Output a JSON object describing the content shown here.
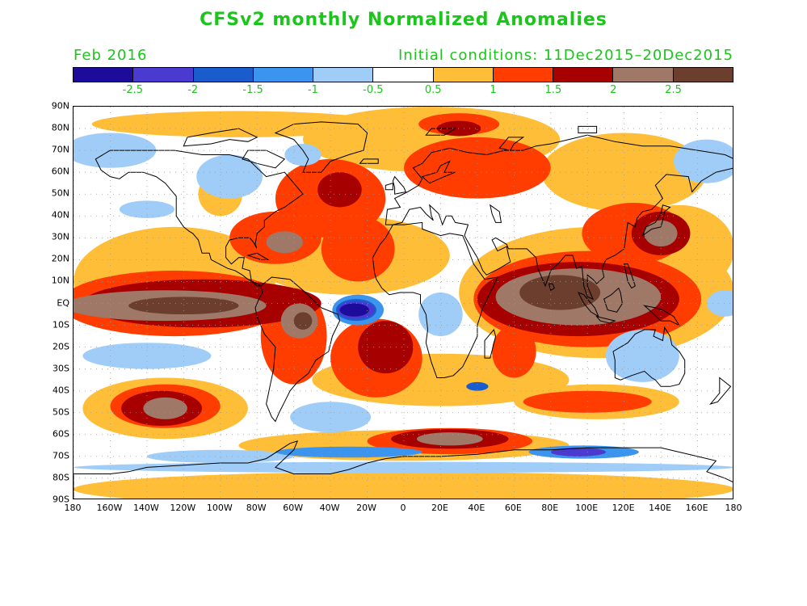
{
  "title": "CFSv2 monthly Normalized Anomalies",
  "subtitle_left": "Feb 2016",
  "subtitle_right": "Initial conditions: 11Dec2015–20Dec2015",
  "colors": {
    "text": "#19c619",
    "coast": "#000000",
    "grid": "#9a9a9a"
  },
  "colorbar": {
    "colors": [
      "#1d0c9c",
      "#4b3ad0",
      "#1a5ccc",
      "#3b95ee",
      "#a0cdf8",
      "#ffffff",
      "#ffbe38",
      "#ff3d00",
      "#a60000",
      "#a07868",
      "#6b3e2e"
    ],
    "labels": [
      "-2.5",
      "-2",
      "-1.5",
      "-1",
      "-0.5",
      "0.5",
      "1",
      "1.5",
      "2",
      "2.5"
    ]
  },
  "lat_labels": [
    "90N",
    "80N",
    "70N",
    "60N",
    "50N",
    "40N",
    "30N",
    "20N",
    "10N",
    "EQ",
    "10S",
    "20S",
    "30S",
    "40S",
    "50S",
    "60S",
    "70S",
    "80S",
    "90S"
  ],
  "lon_labels": [
    "180",
    "160W",
    "140W",
    "120W",
    "100W",
    "80W",
    "60W",
    "40W",
    "20W",
    "0",
    "20E",
    "40E",
    "60E",
    "80E",
    "100E",
    "120E",
    "140E",
    "160E",
    "180"
  ],
  "anomaly_features": [
    {
      "feature": "tropical-pacific",
      "lon_range": [
        -180,
        -80
      ],
      "lat_range": [
        -12,
        10
      ],
      "value": 2.7
    },
    {
      "feature": "indian-ocean-maritime",
      "lon_range": [
        45,
        160
      ],
      "lat_range": [
        -15,
        20
      ],
      "value": 2.7
    },
    {
      "feature": "equatorial-atlantic",
      "lon_range": [
        -35,
        -15
      ],
      "lat_range": [
        -10,
        3
      ],
      "value": -2.6
    },
    {
      "feature": "southern-ocean-atlantic",
      "lon_range": [
        -5,
        35
      ],
      "lat_range": [
        -65,
        -52
      ],
      "value": 2.6
    },
    {
      "feature": "south-pacific",
      "lon_range": [
        -155,
        -105
      ],
      "lat_range": [
        -55,
        -40
      ],
      "value": 2.6
    },
    {
      "feature": "north-atlantic",
      "lon_range": [
        -60,
        20
      ],
      "lat_range": [
        10,
        70
      ],
      "value": 1.6
    },
    {
      "feature": "australia",
      "lon_range": [
        115,
        150
      ],
      "lat_range": [
        -35,
        -12
      ],
      "value": -0.7
    },
    {
      "feature": "canada",
      "lon_range": [
        -110,
        -80
      ],
      "lat_range": [
        45,
        65
      ],
      "value": -0.8
    }
  ]
}
